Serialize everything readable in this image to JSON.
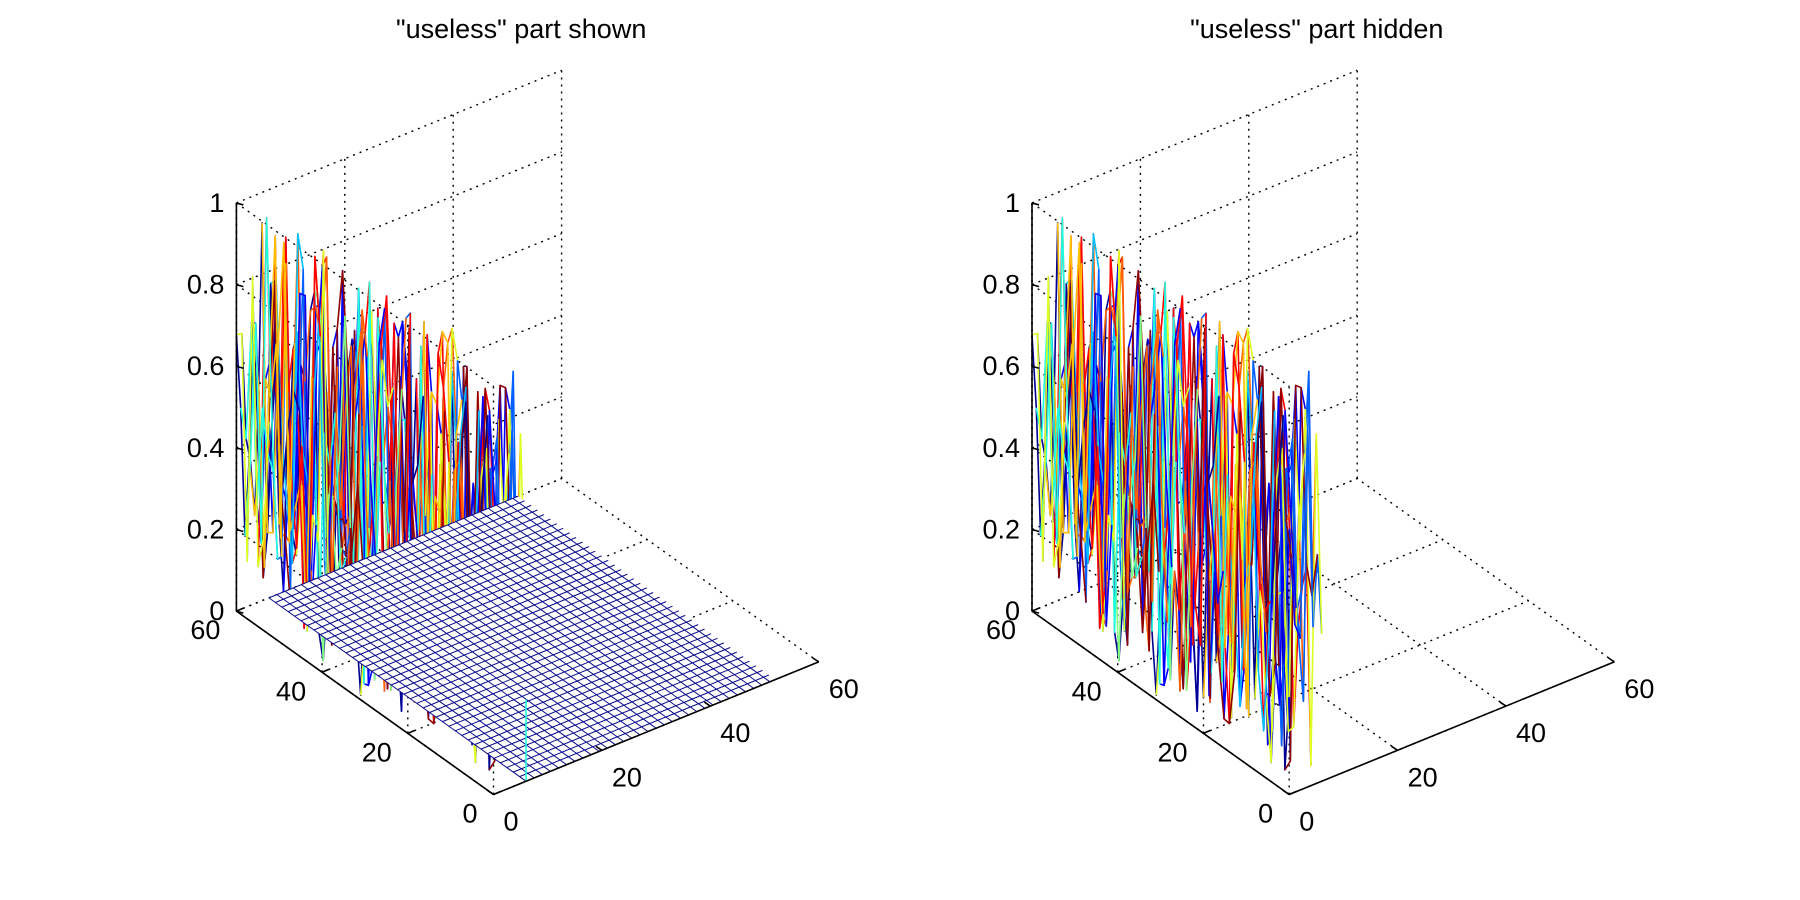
{
  "chart_data": [
    {
      "type": "surface",
      "title": "\"useless\" part shown",
      "zticks": [
        "0",
        "0.2",
        "0.4",
        "0.6",
        "0.8",
        "1"
      ],
      "xticks": [
        "0",
        "20",
        "40",
        "60"
      ],
      "yticks": [
        "0",
        "20",
        "40",
        "60"
      ],
      "xlim": [
        0,
        60
      ],
      "ylim": [
        0,
        60
      ],
      "zlim": [
        0,
        1
      ],
      "grid": true,
      "useless_region_visible": true,
      "colormap": "jet"
    },
    {
      "type": "surface",
      "title": "\"useless\" part hidden",
      "zticks": [
        "0",
        "0.2",
        "0.4",
        "0.6",
        "0.8",
        "1"
      ],
      "xticks": [
        "0",
        "20",
        "40",
        "60"
      ],
      "yticks": [
        "0",
        "20",
        "40",
        "60"
      ],
      "xlim": [
        0,
        60
      ],
      "ylim": [
        0,
        60
      ],
      "zlim": [
        0,
        1
      ],
      "grid": true,
      "useless_region_visible": false,
      "colormap": "jet"
    }
  ],
  "colors": {
    "jet": [
      "#00008f",
      "#0000ff",
      "#0060ff",
      "#00bfff",
      "#20ffdf",
      "#80ff80",
      "#dfff20",
      "#ffbf00",
      "#ff6000",
      "#ff0000",
      "#8f0000"
    ],
    "mesh": "#0b0b8c"
  }
}
